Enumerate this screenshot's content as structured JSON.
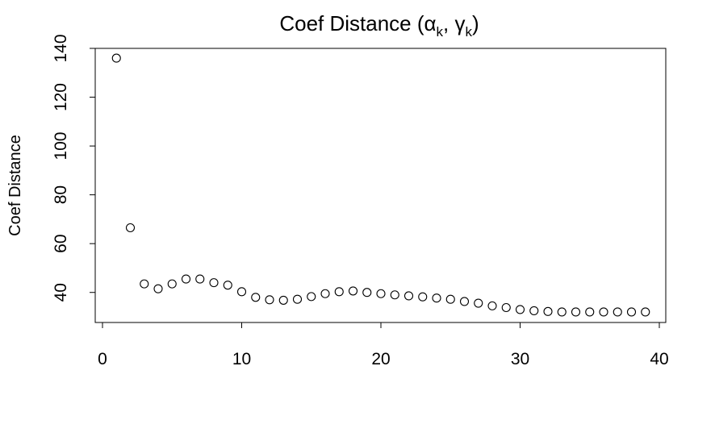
{
  "chart_data": {
    "type": "scatter",
    "title": {
      "prefix": "Coef Distance (",
      "alpha": "α",
      "alpha_sub": "k",
      "separator": ", ",
      "gamma": "γ",
      "gamma_sub": "k",
      "suffix": ")"
    },
    "xlabel": "",
    "ylabel": "Coef Distance",
    "xlim": [
      0,
      40
    ],
    "ylim": [
      30,
      140
    ],
    "x_ticks": [
      0,
      10,
      20,
      30,
      40
    ],
    "y_ticks": [
      40,
      60,
      80,
      100,
      120,
      140
    ],
    "x_tick_labels": [
      "0",
      "10",
      "20",
      "30",
      "40"
    ],
    "y_tick_labels": [
      "40",
      "60",
      "80",
      "100",
      "120",
      "140"
    ],
    "grid": false,
    "marker": "open-circle",
    "x": [
      1,
      2,
      3,
      4,
      5,
      6,
      7,
      8,
      9,
      10,
      11,
      12,
      13,
      14,
      15,
      16,
      17,
      18,
      19,
      20,
      21,
      22,
      23,
      24,
      25,
      26,
      27,
      28,
      29,
      30,
      31,
      32,
      33,
      34,
      35,
      36,
      37,
      38,
      39
    ],
    "y": [
      136,
      66.5,
      43.5,
      41.5,
      43.5,
      45.5,
      45.5,
      44,
      43,
      40.3,
      38,
      37,
      36.8,
      37.2,
      38.3,
      39.5,
      40.3,
      40.6,
      40,
      39.5,
      39,
      38.6,
      38.2,
      37.7,
      37.2,
      36.3,
      35.6,
      34.5,
      33.8,
      33,
      32.5,
      32.2,
      32,
      32,
      32,
      32,
      32,
      32,
      32
    ]
  }
}
